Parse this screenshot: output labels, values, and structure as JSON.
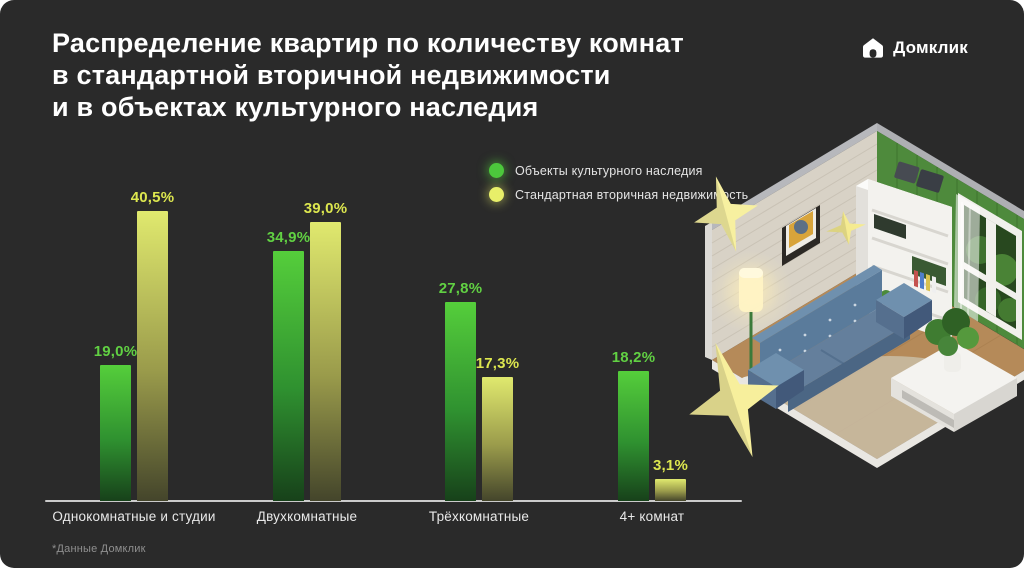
{
  "slide": {
    "title": "Распределение квартир по количеству комнат\nв стандартной вторичной недвижимости\nи в объектах культурного наследия",
    "footnote": "*Данные Домклик",
    "background": "#2a2a2a"
  },
  "logo": {
    "text": "Домклик",
    "icon": "domclick-house-icon",
    "color": "#ffffff"
  },
  "legend": [
    {
      "label": "Объекты культурного наследия",
      "color": "#4cc83c"
    },
    {
      "label": "Стандартная вторичная недвижимость",
      "color": "#e8ef69"
    }
  ],
  "chart_data": {
    "type": "bar",
    "title": "Распределение квартир по количеству комнат в стандартной вторичной недвижимости и в объектах культурного наследия",
    "categories": [
      "Однокомнатные и студии",
      "Двухкомнатные",
      "Трёхкомнатные",
      "4+ комнат"
    ],
    "series": [
      {
        "name": "Объекты культурного наследия",
        "values": [
          19.0,
          34.9,
          27.8,
          18.2
        ],
        "labels": [
          "19,0%",
          "34,9%",
          "27,8%",
          "18,2%"
        ],
        "label_color": "#61d143",
        "color_top": "#55ce3b",
        "color_mid": "#2f9130",
        "color_bottom": "#17411a"
      },
      {
        "name": "Стандартная вторичная недвижимость",
        "values": [
          40.5,
          39.0,
          17.3,
          3.1
        ],
        "labels": [
          "40,5%",
          "39,0%",
          "17,3%",
          "3,1%"
        ],
        "label_color": "#dde74f",
        "color_top": "#e0e96e",
        "color_mid": "#9a9b4b",
        "color_bottom": "#44452b"
      }
    ],
    "ylim": [
      0,
      43
    ],
    "value_suffix": "%",
    "grid": false,
    "legend_position": "top-right",
    "baseline_visible": true
  },
  "illustration": {
    "name": "isometric-living-room-with-stars",
    "stars_count": 3
  }
}
